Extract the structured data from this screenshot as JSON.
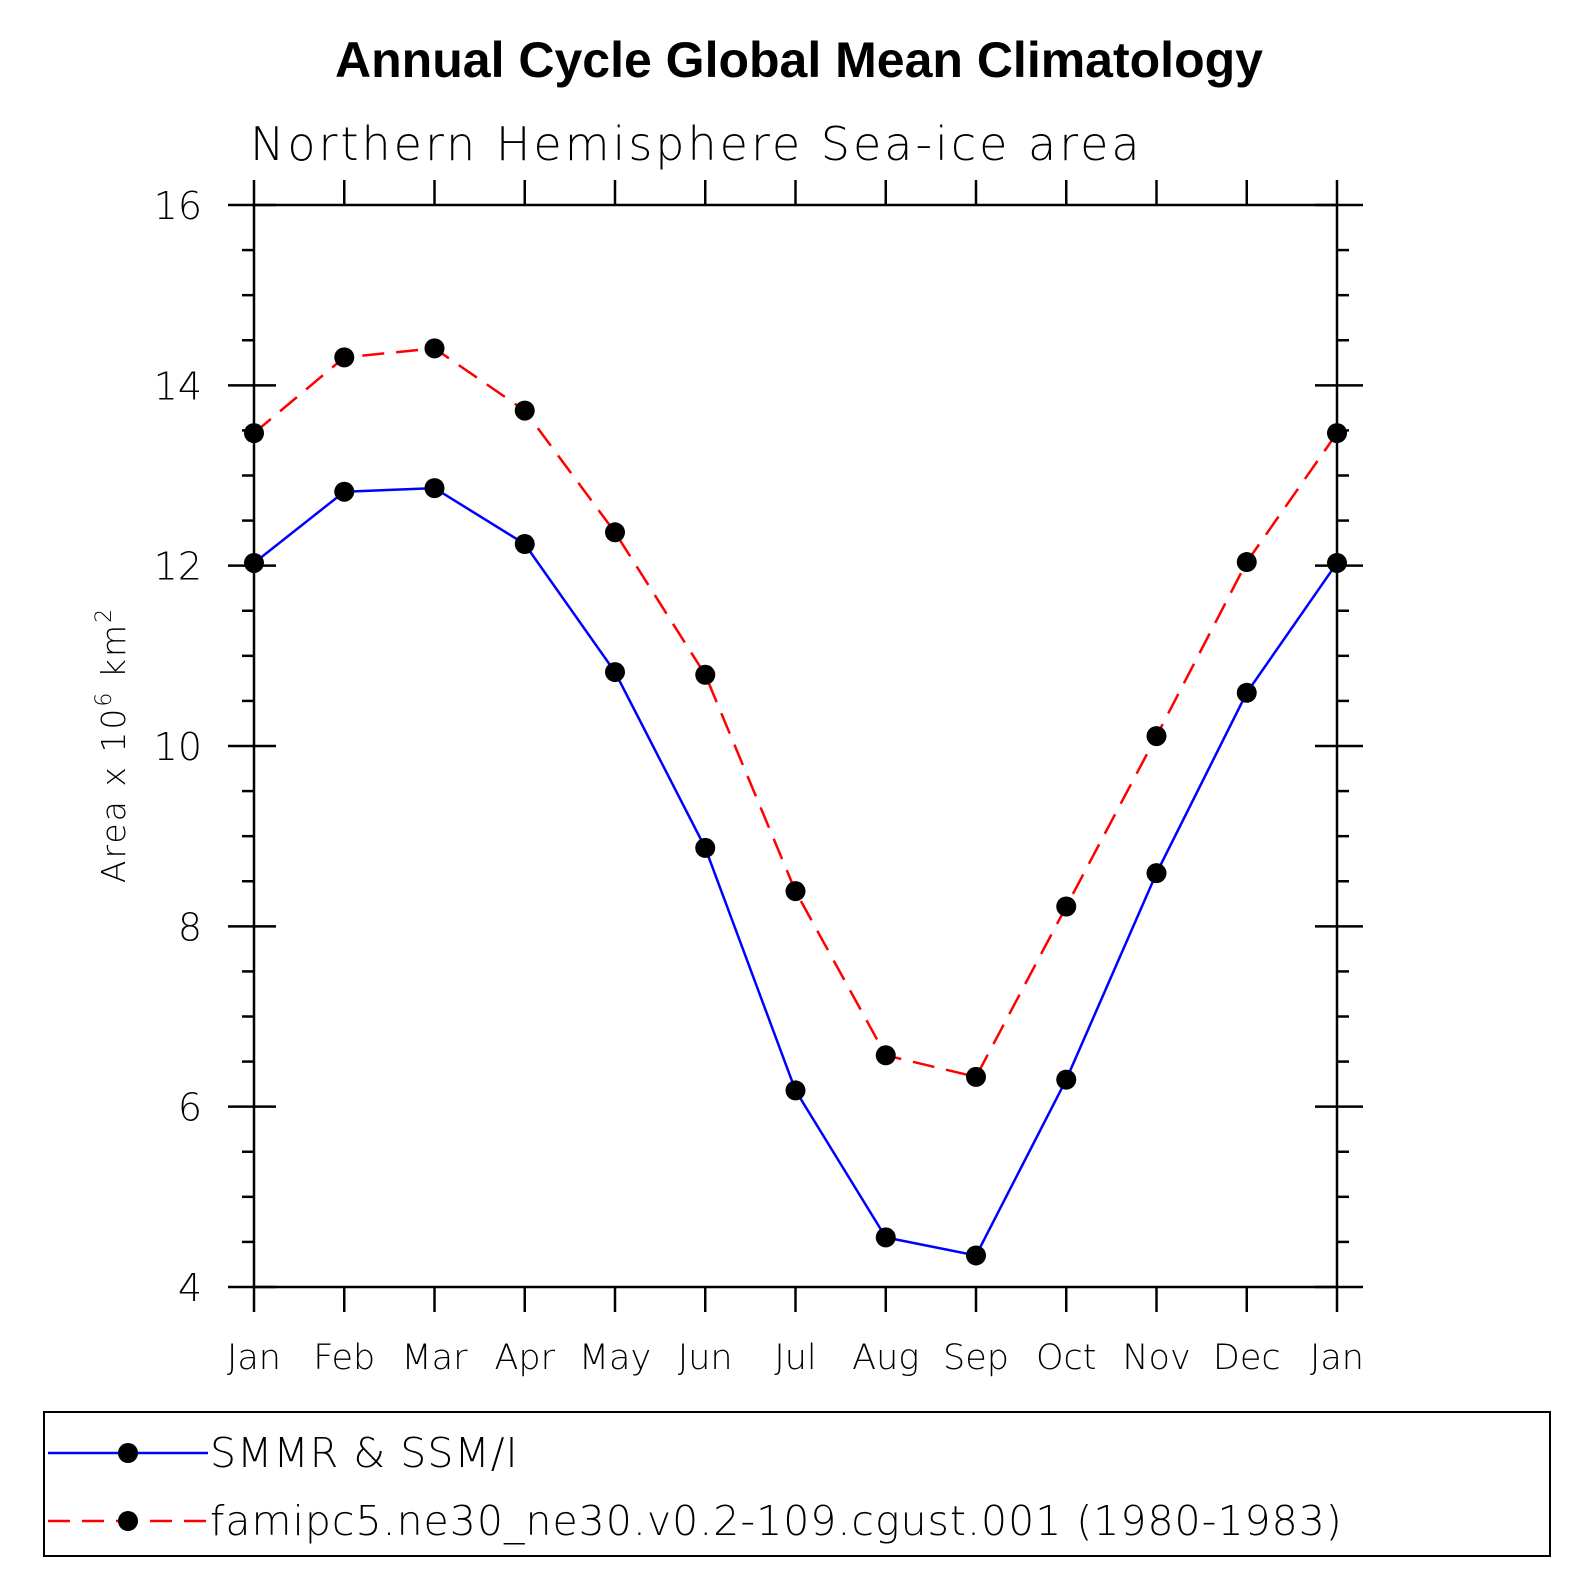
{
  "chart_data": {
    "type": "line",
    "title": "Annual Cycle Global Mean Climatology",
    "subtitle": "Northern Hemisphere Sea-ice area",
    "ylabel": "Area x 10^6 km^2",
    "ylabel_parts": {
      "base": "Area x 10",
      "exp1": "6",
      "mid": " km",
      "exp2": "2"
    },
    "categories": [
      "Jan",
      "Feb",
      "Mar",
      "Apr",
      "May",
      "Jun",
      "Jul",
      "Aug",
      "Sep",
      "Oct",
      "Nov",
      "Dec",
      "Jan"
    ],
    "ylim": [
      4,
      16
    ],
    "yticks": [
      4,
      6,
      8,
      10,
      12,
      14,
      16
    ],
    "grid": false,
    "legend_position": "bottom",
    "series": [
      {
        "name": "SMMR & SSM/I",
        "color": "#0000ff",
        "dash": "solid",
        "values": [
          12.03,
          12.82,
          12.86,
          12.24,
          10.82,
          8.87,
          6.18,
          4.55,
          4.35,
          6.3,
          8.59,
          10.59,
          12.03
        ]
      },
      {
        "name": "famipc5.ne30_ne30.v0.2-109.cgust.001 (1980-1983)",
        "color": "#ff0000",
        "dash": "dashed",
        "values": [
          13.47,
          14.31,
          14.41,
          13.72,
          12.37,
          10.79,
          8.39,
          6.57,
          6.33,
          8.22,
          10.11,
          12.04,
          13.47
        ]
      }
    ]
  }
}
